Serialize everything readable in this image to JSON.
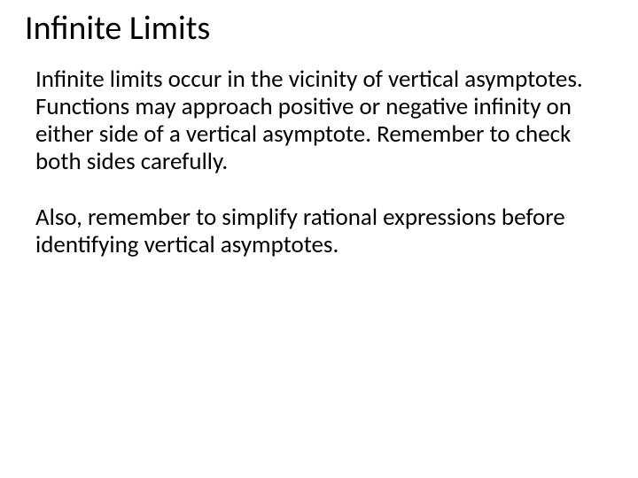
{
  "slide": {
    "title": "Infinite Limits",
    "paragraph1": "Infinite limits occur in the vicinity of vertical asymptotes.  Functions may approach positive or negative infinity on either side of a vertical asymptote.  Remember to check both sides carefully.",
    "paragraph2": "Also, remember to simplify rational expressions before identifying vertical asymptotes.",
    "background_color": "#ffffff",
    "text_color": "#000000",
    "title_fontsize": 38,
    "body_fontsize": 27,
    "font_family": "Calibri"
  }
}
